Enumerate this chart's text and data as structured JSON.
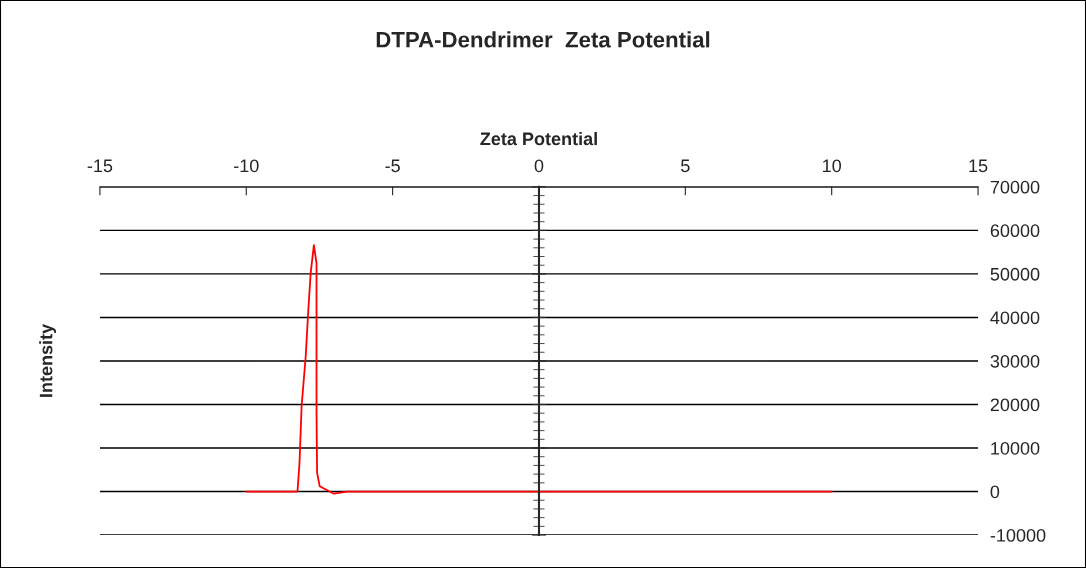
{
  "chart_data": {
    "type": "line",
    "title": "DTPA-Dendrimer  Zeta Potential",
    "xlabel": "Zeta Potential",
    "ylabel": "Intensity",
    "series": [
      {
        "color": "#ff0000",
        "x": [
          -10,
          -8.25,
          -8.18,
          -8.11,
          -7.97,
          -7.88,
          -7.8,
          -7.69,
          -7.6,
          -7.6,
          -7.58,
          -7.49,
          -7.01,
          -6.56,
          10
        ],
        "values": [
          0,
          0,
          6650,
          19600,
          31000,
          41700,
          50200,
          56600,
          52400,
          18000,
          4300,
          1200,
          -500,
          0,
          0
        ]
      }
    ],
    "xlim": [
      -15,
      15
    ],
    "xticks": [
      -15,
      -10,
      -5,
      0,
      5,
      10,
      15
    ],
    "ylim": [
      -10000,
      70000
    ],
    "yticks": [
      -10000,
      0,
      10000,
      20000,
      30000,
      40000,
      50000,
      60000,
      70000
    ],
    "grid": "y",
    "legend": false,
    "marker": "none",
    "line_style": "solid"
  }
}
